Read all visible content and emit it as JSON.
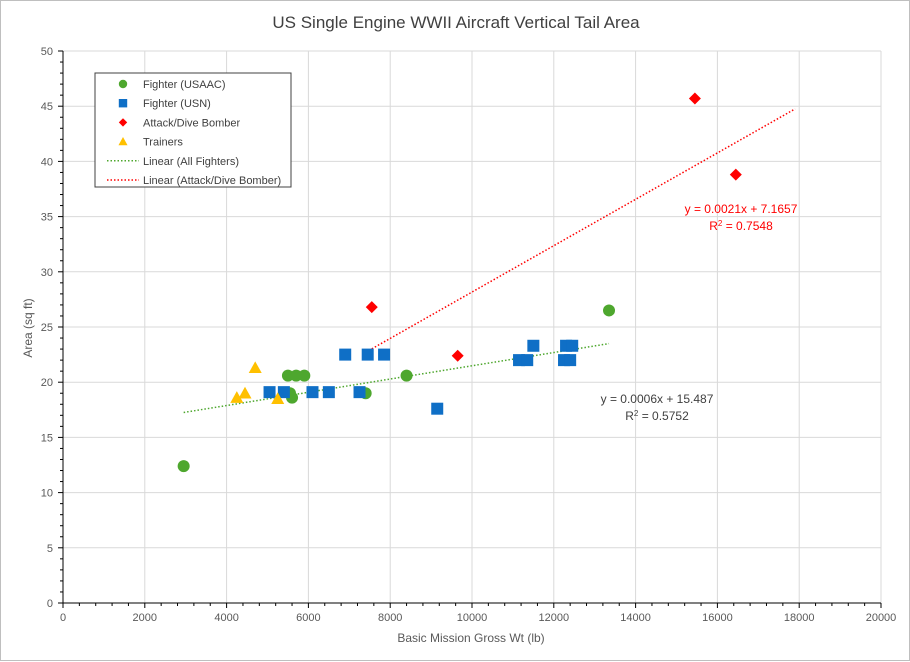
{
  "chart_data": {
    "type": "scatter",
    "title": "US Single Engine WWII Aircraft Vertical Tail Area",
    "xlabel": "Basic Mission Gross Wt (lb)",
    "ylabel": "Area (sq ft)",
    "xlim": [
      0,
      20000
    ],
    "ylim": [
      0,
      50
    ],
    "xticks": [
      0,
      2000,
      4000,
      6000,
      8000,
      10000,
      12000,
      14000,
      16000,
      18000,
      20000
    ],
    "yticks": [
      0,
      5,
      10,
      15,
      20,
      25,
      30,
      35,
      40,
      45,
      50
    ],
    "grid": true,
    "legend_position": "top-left",
    "series": [
      {
        "name": "Fighter (USAAC)",
        "marker": "circle",
        "color": "#4ea72e",
        "points": [
          [
            2950,
            12.4
          ],
          [
            5500,
            20.6
          ],
          [
            5700,
            20.6
          ],
          [
            5900,
            20.6
          ],
          [
            5600,
            18.6
          ],
          [
            5550,
            19.0
          ],
          [
            7400,
            19.0
          ],
          [
            8400,
            20.6
          ],
          [
            13350,
            26.5
          ]
        ]
      },
      {
        "name": "Fighter (USN)",
        "marker": "square",
        "color": "#0f6fc6",
        "points": [
          [
            5050,
            19.1
          ],
          [
            5400,
            19.1
          ],
          [
            6100,
            19.1
          ],
          [
            6500,
            19.1
          ],
          [
            7250,
            19.1
          ],
          [
            6900,
            22.5
          ],
          [
            7450,
            22.5
          ],
          [
            7850,
            22.5
          ],
          [
            9150,
            17.6
          ],
          [
            11150,
            22.0
          ],
          [
            11350,
            22.0
          ],
          [
            11500,
            23.3
          ],
          [
            12250,
            22.0
          ],
          [
            12400,
            22.0
          ],
          [
            12300,
            23.3
          ],
          [
            12450,
            23.3
          ]
        ]
      },
      {
        "name": "Attack/Dive Bomber",
        "marker": "diamond",
        "color": "#ff0000",
        "points": [
          [
            7550,
            26.8
          ],
          [
            9650,
            22.4
          ],
          [
            15450,
            45.7
          ],
          [
            16450,
            38.8
          ]
        ]
      },
      {
        "name": "Trainers",
        "marker": "triangle",
        "color": "#ffc000",
        "points": [
          [
            4250,
            18.6
          ],
          [
            4450,
            19.0
          ],
          [
            4700,
            21.3
          ],
          [
            5250,
            18.5
          ]
        ]
      }
    ],
    "trendlines": [
      {
        "name": "Linear (All Fighters)",
        "color": "#4ea72e",
        "slope": 0.0006,
        "intercept": 15.487,
        "x_range": [
          2950,
          13350
        ],
        "equation": "y = 0.0006x + 15.487",
        "r2_label": "R",
        "r2_exp": "2",
        "r2_value": " = 0.5752"
      },
      {
        "name": "Linear (Attack/Dive Bomber)",
        "color": "#ff0000",
        "slope": 0.0021,
        "intercept": 7.1657,
        "x_range": [
          7550,
          17900
        ],
        "equation": "y = 0.0021x + 7.1657",
        "r2_label": "R",
        "r2_exp": "2",
        "r2_value": " = 0.7548"
      }
    ]
  }
}
